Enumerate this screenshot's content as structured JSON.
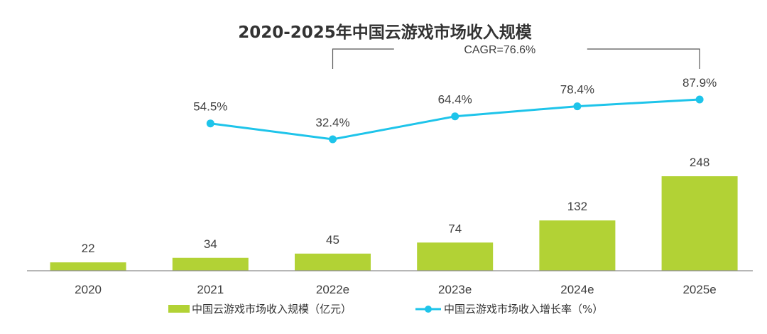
{
  "colors": {
    "bar": "#b2d235",
    "line": "#1ec4ea",
    "axis": "#8c8c8c",
    "bracket": "#555555",
    "text": "#404040"
  },
  "chart_data": {
    "type": "bar",
    "title": "2020-2025年中国云游戏市场收入规模",
    "categories": [
      "2020",
      "2021",
      "2022e",
      "2023e",
      "2024e",
      "2025e"
    ],
    "series": [
      {
        "name": "中国云游戏市场收入规模（亿元）",
        "type": "bar",
        "axis": "left",
        "values": [
          22,
          34,
          45,
          74,
          132,
          248
        ],
        "labels": [
          "22",
          "34",
          "45",
          "74",
          "132",
          "248"
        ]
      },
      {
        "name": "中国云游戏市场收入增长率（%）",
        "type": "line",
        "axis": "right",
        "values": [
          null,
          54.5,
          32.4,
          64.4,
          78.4,
          87.9
        ],
        "labels": [
          null,
          "54.5%",
          "32.4%",
          "64.4%",
          "78.4%",
          "87.9%"
        ]
      }
    ],
    "annotation": {
      "text": "CAGR=76.6%",
      "from": "2022e",
      "to": "2025e"
    },
    "legend_position": "bottom-center",
    "grid": false
  }
}
